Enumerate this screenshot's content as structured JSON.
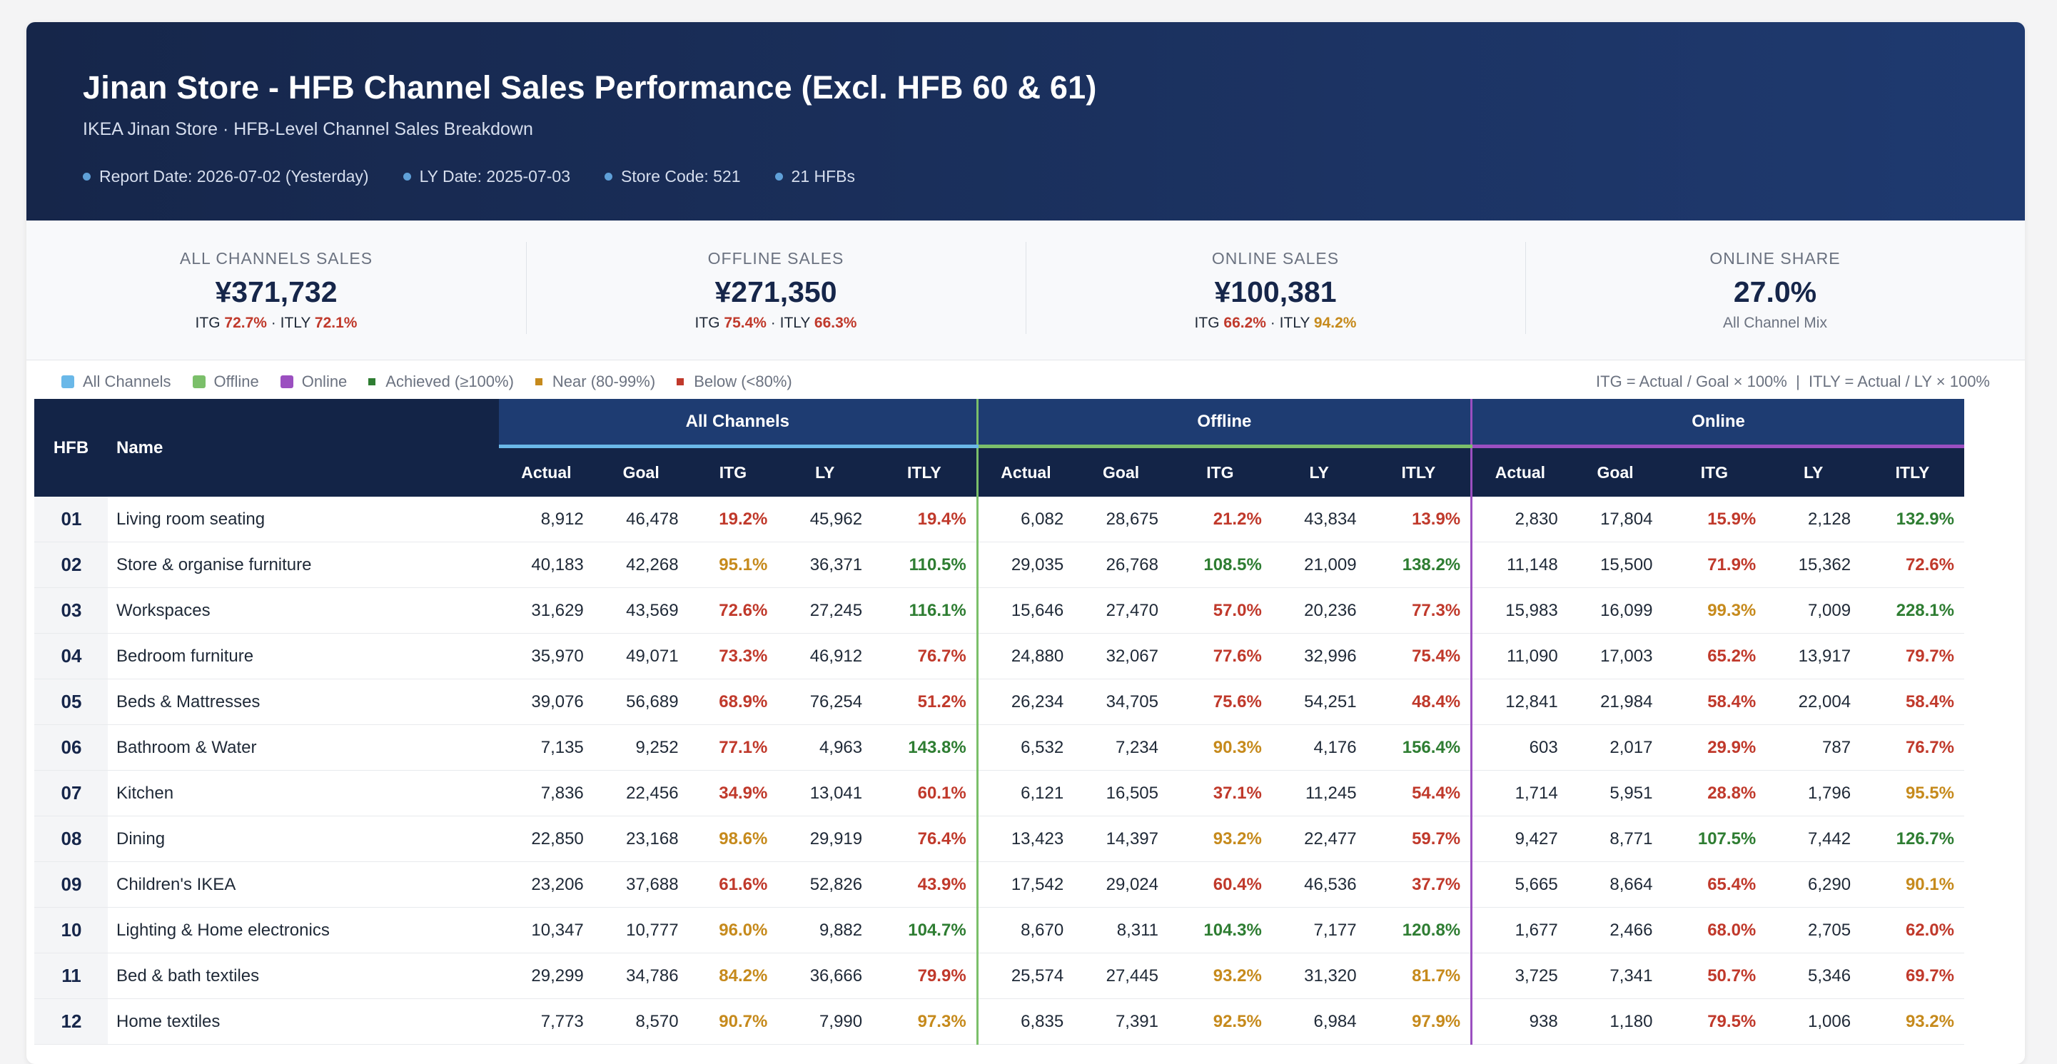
{
  "header": {
    "title": "Jinan Store - HFB Channel Sales Performance (Excl. HFB 60 & 61)",
    "subtitle": "IKEA Jinan Store · HFB-Level Channel Sales Breakdown",
    "meta": [
      "Report Date: 2026-07-02 (Yesterday)",
      "LY Date: 2025-07-03",
      "Store Code: 521",
      "21 HFBs"
    ]
  },
  "kpis": [
    {
      "label": "ALL CHANNELS SALES",
      "value": "¥371,732",
      "itg": "72.7%",
      "itg_status": "red",
      "itly": "72.1%",
      "itly_status": "red"
    },
    {
      "label": "OFFLINE SALES",
      "value": "¥271,350",
      "itg": "75.4%",
      "itg_status": "red",
      "itly": "66.3%",
      "itly_status": "red"
    },
    {
      "label": "ONLINE SALES",
      "value": "¥100,381",
      "itg": "66.2%",
      "itg_status": "red",
      "itly": "94.2%",
      "itly_status": "amber"
    },
    {
      "label": "ONLINE SHARE",
      "value": "27.0%",
      "sub": "All Channel Mix"
    }
  ],
  "kpi_sub_labels": {
    "itg": "ITG",
    "sep": "·",
    "itly": "ITLY"
  },
  "legend": {
    "items": [
      {
        "label": "All Channels",
        "color": "#6ab8e8",
        "shape": "swatch"
      },
      {
        "label": "Offline",
        "color": "#7bbf6a",
        "shape": "swatch"
      },
      {
        "label": "Online",
        "color": "#9b4fc0",
        "shape": "swatch"
      },
      {
        "label": "Achieved (≥100%)",
        "color": "#2e7d32",
        "shape": "square"
      },
      {
        "label": "Near (80-99%)",
        "color": "#c68a1c",
        "shape": "square"
      },
      {
        "label": "Below (<80%)",
        "color": "#c0392b",
        "shape": "square"
      }
    ],
    "note": "ITG = Actual / Goal × 100%  |  ITLY = Actual / LY × 100%"
  },
  "table": {
    "hfb_header": "HFB",
    "name_header": "Name",
    "groups": [
      "All Channels",
      "Offline",
      "Online"
    ],
    "columns": [
      "Actual",
      "Goal",
      "ITG",
      "LY",
      "ITLY"
    ],
    "rows": [
      {
        "hfb": "01",
        "name": "Living room seating",
        "cells": [
          [
            "8,912",
            "46,478",
            "19.2%",
            "45,962",
            "19.4%"
          ],
          [
            "6,082",
            "28,675",
            "21.2%",
            "43,834",
            "13.9%"
          ],
          [
            "2,830",
            "17,804",
            "15.9%",
            "2,128",
            "132.9%"
          ]
        ]
      },
      {
        "hfb": "02",
        "name": "Store & organise furniture",
        "cells": [
          [
            "40,183",
            "42,268",
            "95.1%",
            "36,371",
            "110.5%"
          ],
          [
            "29,035",
            "26,768",
            "108.5%",
            "21,009",
            "138.2%"
          ],
          [
            "11,148",
            "15,500",
            "71.9%",
            "15,362",
            "72.6%"
          ]
        ]
      },
      {
        "hfb": "03",
        "name": "Workspaces",
        "cells": [
          [
            "31,629",
            "43,569",
            "72.6%",
            "27,245",
            "116.1%"
          ],
          [
            "15,646",
            "27,470",
            "57.0%",
            "20,236",
            "77.3%"
          ],
          [
            "15,983",
            "16,099",
            "99.3%",
            "7,009",
            "228.1%"
          ]
        ]
      },
      {
        "hfb": "04",
        "name": "Bedroom furniture",
        "cells": [
          [
            "35,970",
            "49,071",
            "73.3%",
            "46,912",
            "76.7%"
          ],
          [
            "24,880",
            "32,067",
            "77.6%",
            "32,996",
            "75.4%"
          ],
          [
            "11,090",
            "17,003",
            "65.2%",
            "13,917",
            "79.7%"
          ]
        ]
      },
      {
        "hfb": "05",
        "name": "Beds & Mattresses",
        "cells": [
          [
            "39,076",
            "56,689",
            "68.9%",
            "76,254",
            "51.2%"
          ],
          [
            "26,234",
            "34,705",
            "75.6%",
            "54,251",
            "48.4%"
          ],
          [
            "12,841",
            "21,984",
            "58.4%",
            "22,004",
            "58.4%"
          ]
        ]
      },
      {
        "hfb": "06",
        "name": "Bathroom & Water",
        "cells": [
          [
            "7,135",
            "9,252",
            "77.1%",
            "4,963",
            "143.8%"
          ],
          [
            "6,532",
            "7,234",
            "90.3%",
            "4,176",
            "156.4%"
          ],
          [
            "603",
            "2,017",
            "29.9%",
            "787",
            "76.7%"
          ]
        ]
      },
      {
        "hfb": "07",
        "name": "Kitchen",
        "cells": [
          [
            "7,836",
            "22,456",
            "34.9%",
            "13,041",
            "60.1%"
          ],
          [
            "6,121",
            "16,505",
            "37.1%",
            "11,245",
            "54.4%"
          ],
          [
            "1,714",
            "5,951",
            "28.8%",
            "1,796",
            "95.5%"
          ]
        ]
      },
      {
        "hfb": "08",
        "name": "Dining",
        "cells": [
          [
            "22,850",
            "23,168",
            "98.6%",
            "29,919",
            "76.4%"
          ],
          [
            "13,423",
            "14,397",
            "93.2%",
            "22,477",
            "59.7%"
          ],
          [
            "9,427",
            "8,771",
            "107.5%",
            "7,442",
            "126.7%"
          ]
        ]
      },
      {
        "hfb": "09",
        "name": "Children's IKEA",
        "cells": [
          [
            "23,206",
            "37,688",
            "61.6%",
            "52,826",
            "43.9%"
          ],
          [
            "17,542",
            "29,024",
            "60.4%",
            "46,536",
            "37.7%"
          ],
          [
            "5,665",
            "8,664",
            "65.4%",
            "6,290",
            "90.1%"
          ]
        ]
      },
      {
        "hfb": "10",
        "name": "Lighting & Home electronics",
        "cells": [
          [
            "10,347",
            "10,777",
            "96.0%",
            "9,882",
            "104.7%"
          ],
          [
            "8,670",
            "8,311",
            "104.3%",
            "7,177",
            "120.8%"
          ],
          [
            "1,677",
            "2,466",
            "68.0%",
            "2,705",
            "62.0%"
          ]
        ]
      },
      {
        "hfb": "11",
        "name": "Bed & bath textiles",
        "cells": [
          [
            "29,299",
            "34,786",
            "84.2%",
            "36,666",
            "79.9%"
          ],
          [
            "25,574",
            "27,445",
            "93.2%",
            "31,320",
            "81.7%"
          ],
          [
            "3,725",
            "7,341",
            "50.7%",
            "5,346",
            "69.7%"
          ]
        ]
      },
      {
        "hfb": "12",
        "name": "Home textiles",
        "cells": [
          [
            "7,773",
            "8,570",
            "90.7%",
            "7,990",
            "97.3%"
          ],
          [
            "6,835",
            "7,391",
            "92.5%",
            "6,984",
            "97.9%"
          ],
          [
            "938",
            "1,180",
            "79.5%",
            "1,006",
            "93.2%"
          ]
        ]
      }
    ]
  }
}
